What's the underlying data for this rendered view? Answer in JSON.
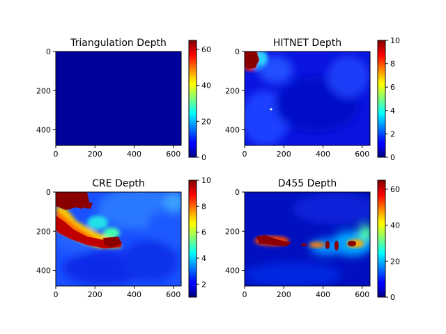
{
  "chart_data": [
    {
      "type": "heatmap",
      "title": "Triangulation Depth",
      "xlabel": "",
      "ylabel": "",
      "xlim": [
        0,
        640
      ],
      "ylim": [
        480,
        0
      ],
      "xticks": [
        0,
        200,
        400,
        600
      ],
      "yticks": [
        0,
        200,
        400
      ],
      "colormap": "jet",
      "colorbar": {
        "range": [
          0,
          65
        ],
        "ticks": [
          0,
          20,
          40,
          60
        ]
      },
      "regions": [
        {
          "description_value": "uniform near-zero depth",
          "value": 0.5
        }
      ]
    },
    {
      "type": "heatmap",
      "title": "HITNET Depth",
      "xlabel": "",
      "ylabel": "",
      "xlim": [
        0,
        640
      ],
      "ylim": [
        480,
        0
      ],
      "xticks": [
        0,
        200,
        400,
        600
      ],
      "yticks": [
        0,
        200,
        400
      ],
      "colormap": "jet",
      "colorbar": {
        "range": [
          0,
          10
        ],
        "ticks": [
          0,
          2,
          4,
          6,
          8,
          10
        ]
      },
      "regions": []
    },
    {
      "type": "heatmap",
      "title": "CRE Depth",
      "xlabel": "",
      "ylabel": "",
      "xlim": [
        0,
        640
      ],
      "ylim": [
        480,
        0
      ],
      "xticks": [
        0,
        200,
        400,
        600
      ],
      "yticks": [
        0,
        200,
        400
      ],
      "colormap": "jet",
      "colorbar": {
        "range": [
          1,
          10
        ],
        "ticks": [
          2,
          4,
          6,
          8,
          10
        ]
      },
      "regions": []
    },
    {
      "type": "heatmap",
      "title": "D455 Depth",
      "xlabel": "",
      "ylabel": "",
      "xlim": [
        0,
        640
      ],
      "ylim": [
        480,
        0
      ],
      "xticks": [
        0,
        200,
        400,
        600
      ],
      "yticks": [
        0,
        200,
        400
      ],
      "colormap": "jet",
      "colorbar": {
        "range": [
          0,
          65
        ],
        "ticks": [
          0,
          20,
          40,
          60
        ]
      },
      "regions": []
    }
  ]
}
